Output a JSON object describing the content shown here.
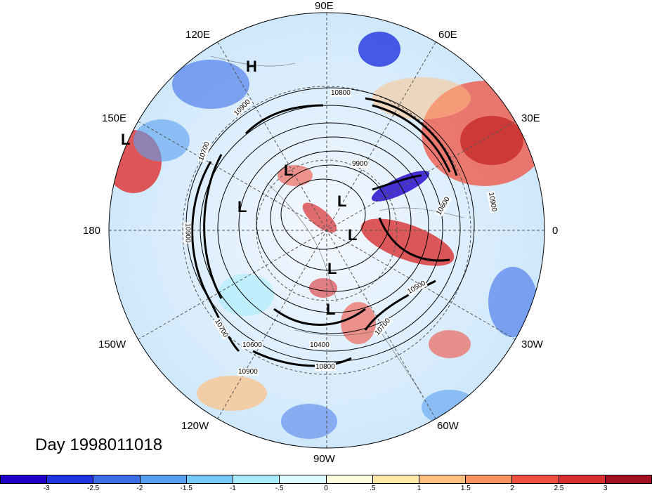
{
  "map": {
    "projection": "north-polar-stereographic",
    "center_lon_top": "90E",
    "longitude_labels": [
      {
        "id": "lon-90e",
        "text": "90E"
      },
      {
        "id": "lon-60e",
        "text": "60E"
      },
      {
        "id": "lon-30e",
        "text": "30E"
      },
      {
        "id": "lon-0",
        "text": "0"
      },
      {
        "id": "lon-30w",
        "text": "30W"
      },
      {
        "id": "lon-60w",
        "text": "60W"
      },
      {
        "id": "lon-90w",
        "text": "90W"
      },
      {
        "id": "lon-120w",
        "text": "120W"
      },
      {
        "id": "lon-150w",
        "text": "150W"
      },
      {
        "id": "lon-180",
        "text": "180"
      },
      {
        "id": "lon-150e",
        "text": "150E"
      },
      {
        "id": "lon-120e",
        "text": "120E"
      }
    ],
    "pressure_centers": [
      {
        "id": "high-1",
        "text": "H"
      },
      {
        "id": "low-1",
        "text": "L"
      },
      {
        "id": "low-2",
        "text": "L"
      },
      {
        "id": "low-3",
        "text": "L"
      },
      {
        "id": "low-4",
        "text": "L"
      },
      {
        "id": "low-5",
        "text": "L"
      },
      {
        "id": "low-6",
        "text": "L"
      },
      {
        "id": "low-7",
        "text": "L"
      }
    ],
    "contour_labels": [
      {
        "id": "c-10800-top",
        "text": "10800"
      },
      {
        "id": "c-10900-nw",
        "text": "10900"
      },
      {
        "id": "c-9900",
        "text": "9900"
      },
      {
        "id": "c-10600-ne",
        "text": "10600"
      },
      {
        "id": "c-10900-e",
        "text": "10900"
      },
      {
        "id": "c-10500",
        "text": "10500"
      },
      {
        "id": "c-10700-se",
        "text": "10700"
      },
      {
        "id": "c-10400",
        "text": "10400"
      },
      {
        "id": "c-10600-s",
        "text": "10600"
      },
      {
        "id": "c-10800-s",
        "text": "10800"
      },
      {
        "id": "c-10900-s",
        "text": "10900"
      },
      {
        "id": "c-10700-sw",
        "text": "10700"
      },
      {
        "id": "c-10900-w",
        "text": "10900"
      },
      {
        "id": "c-10700-w",
        "text": "10700"
      }
    ],
    "day_label": "Day 1998011018"
  },
  "colorbar": {
    "colors": [
      "#1f00c8",
      "#2233e0",
      "#3c6ee8",
      "#5aa0f0",
      "#78c8f8",
      "#a8ecfc",
      "#dcfbff",
      "#fffde0",
      "#ffe8a8",
      "#ffc080",
      "#f89060",
      "#f05040",
      "#d83030",
      "#a01020"
    ],
    "tick_labels": [
      "-3",
      "-2.5",
      "-2",
      "-1.5",
      "-1",
      "-.5",
      "0",
      ".5",
      "1",
      "1.5",
      "2",
      "2.5",
      "3"
    ]
  }
}
